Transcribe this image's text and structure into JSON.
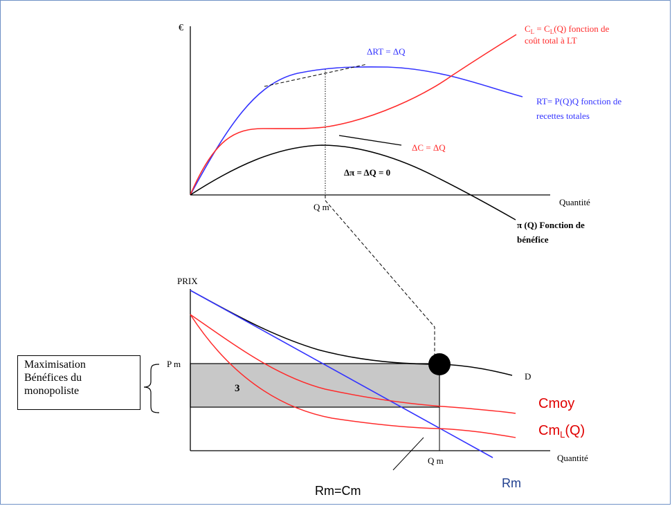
{
  "top_chart": {
    "y_axis_label": "€",
    "x_axis_label": "Quantité",
    "qm_tick": "Q m",
    "cost_curve_label": {
      "symbol": "C",
      "sub": "L",
      "eq": " = C",
      "sub2": "L",
      "rest": "(Q)  fonction de",
      "line2": "coût total à LT"
    },
    "revenue_curve_label": {
      "line1": "RT= P(Q)Q  fonction de",
      "line2": "recettes totales"
    },
    "delta_rt": "ΔRT = ΔQ",
    "delta_c": "ΔC = ΔQ",
    "delta_pi": "Δπ = ΔQ = 0",
    "profit_label": {
      "line1": "π (Q) Fonction de",
      "line2": "bénéfice"
    }
  },
  "bottom_chart": {
    "y_axis_label": "PRIX",
    "x_axis_label": "Quantité",
    "pm_tick": "P m",
    "qm_tick": "Q m",
    "area_label": "3",
    "demand_label": "D",
    "average_cost_label": "Cmoy",
    "marginal_cost_label": {
      "main": "Cm",
      "sub": "L",
      "rest": "(Q)"
    },
    "marginal_revenue_label": "Rm",
    "equality_label": "Rm=Cm"
  },
  "side_box": {
    "line1": "Maximisation",
    "line2": "Bénéfices du",
    "line3": "monopoliste"
  },
  "colors": {
    "revenue": "#3333ff",
    "cost": "#ff2a2a",
    "profit": "#000000",
    "area": "#c8c8c8",
    "marginal_revenue_text": "#1f3f8f",
    "cost_text": "#e00000",
    "frame": "#6d8fc5"
  }
}
